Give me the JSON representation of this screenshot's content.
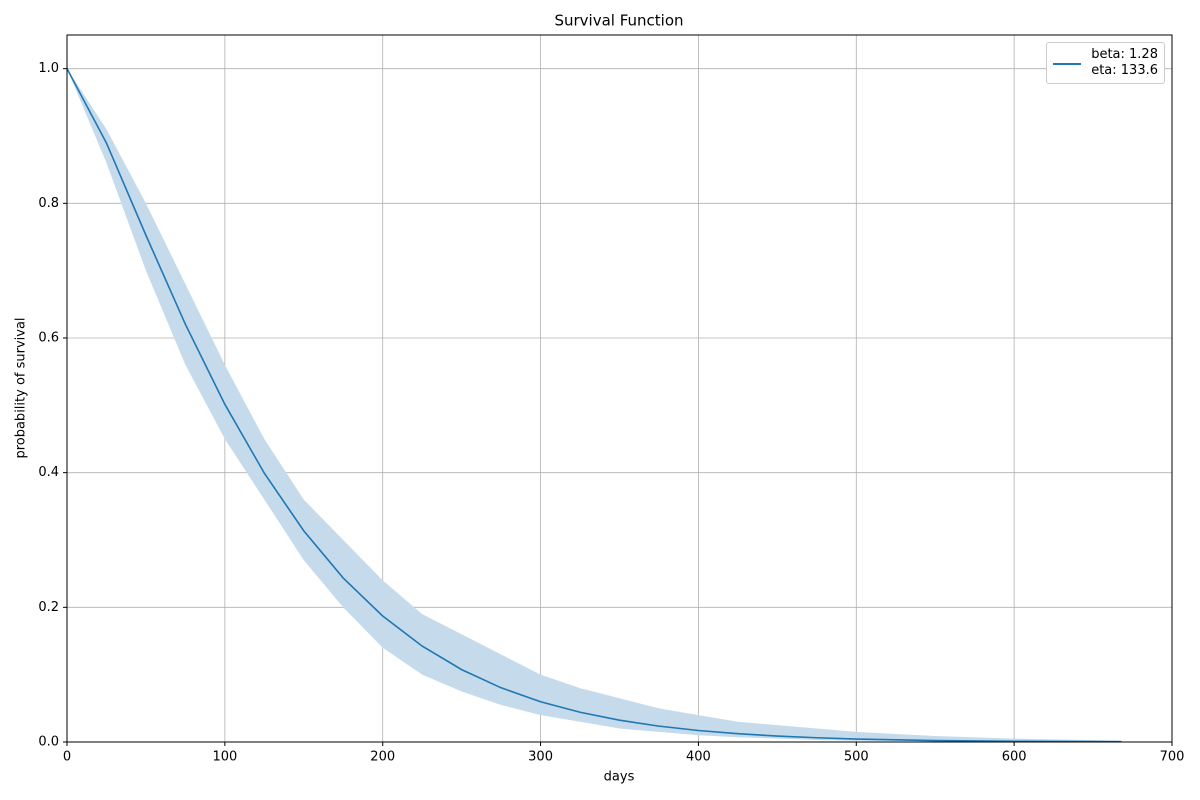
{
  "chart_data": {
    "type": "line",
    "title": "Survival Function",
    "x_label": "days",
    "y_label": "probability of survival",
    "x": [
      0,
      25,
      50,
      75,
      100,
      125,
      150,
      175,
      200,
      225,
      250,
      275,
      300,
      325,
      350,
      375,
      400,
      425,
      450,
      475,
      500,
      550,
      600,
      668
    ],
    "series": [
      {
        "name": "beta: 1.28\neta: 133.6",
        "color": "#1f77b4",
        "band_color": "#c5dbec",
        "values": [
          1,
          0.8895,
          0.7526,
          0.6203,
          0.5015,
          0.3992,
          0.3136,
          0.2435,
          0.1871,
          0.1424,
          0.1075,
          0.0805,
          0.0598,
          0.0442,
          0.0324,
          0.0236,
          0.0171,
          0.0123,
          0.0088,
          0.0063,
          0.0044,
          0.0022,
          0.0011,
          0.0004
        ],
        "lower": [
          1,
          0.86,
          0.7,
          0.56,
          0.45,
          0.36,
          0.27,
          0.2,
          0.14,
          0.1,
          0.075,
          0.055,
          0.04,
          0.03,
          0.02,
          0.015,
          0.01,
          0.007,
          0.005,
          0.003,
          0.002,
          0.001,
          0.0004,
          0.0001
        ],
        "upper": [
          1,
          0.91,
          0.8,
          0.68,
          0.56,
          0.45,
          0.36,
          0.3,
          0.24,
          0.19,
          0.16,
          0.13,
          0.1,
          0.08,
          0.065,
          0.05,
          0.04,
          0.03,
          0.025,
          0.02,
          0.015,
          0.009,
          0.005,
          0.002
        ]
      }
    ],
    "xlim": [
      0,
      700
    ],
    "xticks": [
      0,
      100,
      200,
      300,
      400,
      500,
      600,
      700
    ],
    "ylim": [
      0,
      1.05
    ],
    "yticks": [
      {
        "value": 0,
        "label": "0.0"
      },
      0.2,
      0.4,
      0.6,
      0.8,
      {
        "value": 1,
        "label": "1.0"
      }
    ],
    "grid": true,
    "legend_position": "upper right"
  }
}
